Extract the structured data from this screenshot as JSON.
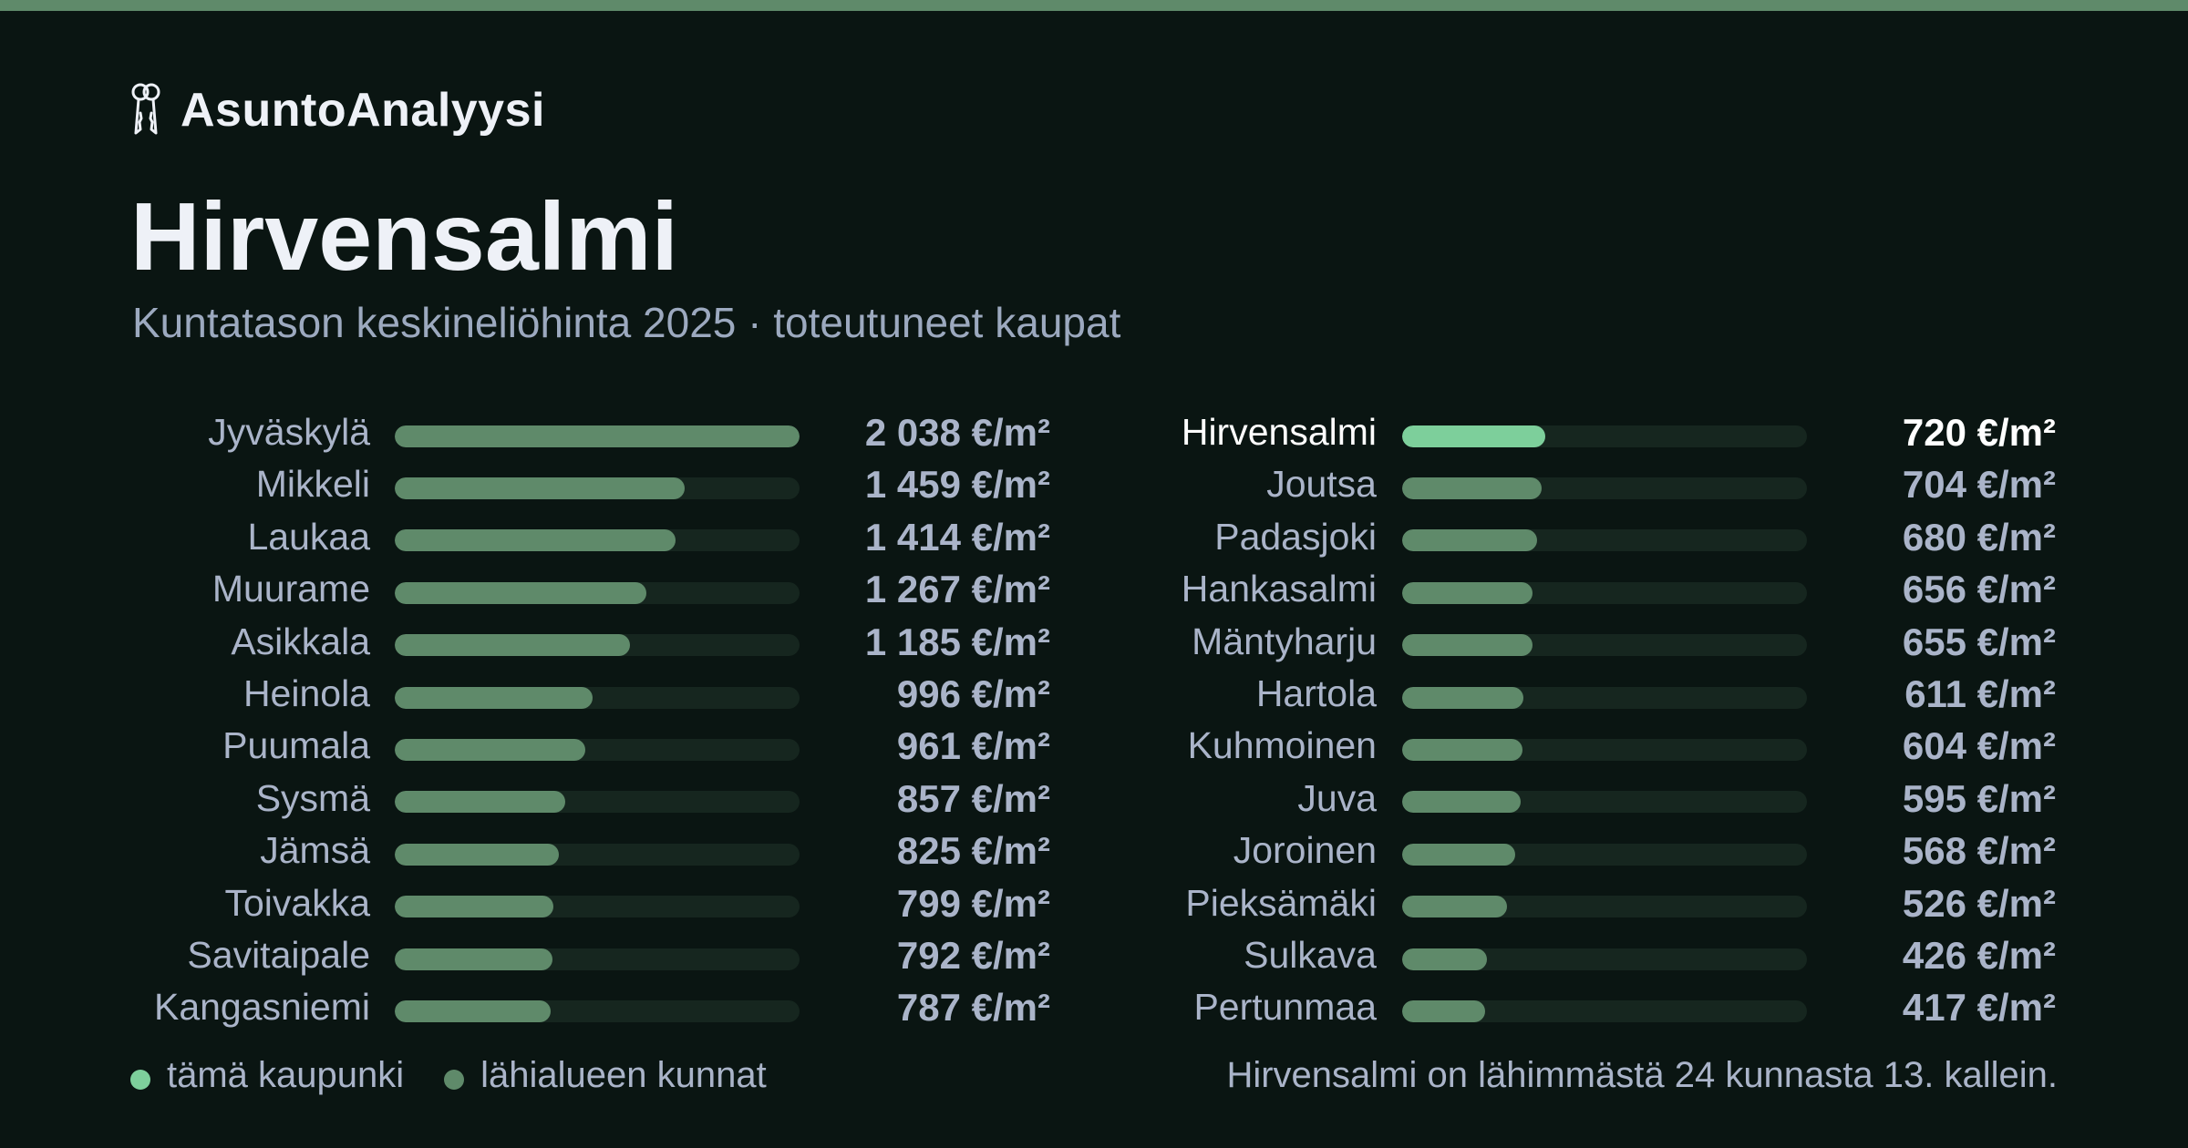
{
  "brand": {
    "name": "AsuntoAnalyysi",
    "icon": "keys-icon"
  },
  "header": {
    "title": "Hirvensalmi",
    "subtitle": "Kuntatason keskineliöhinta 2025 · toteutuneet kaupat"
  },
  "colors": {
    "background": "#0a1512",
    "accent": "#7dcf9b",
    "bar": "#5f8a6a",
    "track": "#16261f",
    "text_muted": "#aab4c9",
    "text_bright": "#ffffff"
  },
  "chart_data": {
    "type": "bar",
    "orientation": "horizontal",
    "unit": "€/m²",
    "xlim": [
      0,
      2038
    ],
    "highlight": "Hirvensalmi",
    "columns": [
      [
        {
          "name": "Jyväskylä",
          "value": 2038,
          "label": "2 038 €/m²"
        },
        {
          "name": "Mikkeli",
          "value": 1459,
          "label": "1 459 €/m²"
        },
        {
          "name": "Laukaa",
          "value": 1414,
          "label": "1 414 €/m²"
        },
        {
          "name": "Muurame",
          "value": 1267,
          "label": "1 267 €/m²"
        },
        {
          "name": "Asikkala",
          "value": 1185,
          "label": "1 185 €/m²"
        },
        {
          "name": "Heinola",
          "value": 996,
          "label": "996 €/m²"
        },
        {
          "name": "Puumala",
          "value": 961,
          "label": "961 €/m²"
        },
        {
          "name": "Sysmä",
          "value": 857,
          "label": "857 €/m²"
        },
        {
          "name": "Jämsä",
          "value": 825,
          "label": "825 €/m²"
        },
        {
          "name": "Toivakka",
          "value": 799,
          "label": "799 €/m²"
        },
        {
          "name": "Savitaipale",
          "value": 792,
          "label": "792 €/m²"
        },
        {
          "name": "Kangasniemi",
          "value": 787,
          "label": "787 €/m²"
        }
      ],
      [
        {
          "name": "Hirvensalmi",
          "value": 720,
          "label": "720 €/m²"
        },
        {
          "name": "Joutsa",
          "value": 704,
          "label": "704 €/m²"
        },
        {
          "name": "Padasjoki",
          "value": 680,
          "label": "680 €/m²"
        },
        {
          "name": "Hankasalmi",
          "value": 656,
          "label": "656 €/m²"
        },
        {
          "name": "Mäntyharju",
          "value": 655,
          "label": "655 €/m²"
        },
        {
          "name": "Hartola",
          "value": 611,
          "label": "611 €/m²"
        },
        {
          "name": "Kuhmoinen",
          "value": 604,
          "label": "604 €/m²"
        },
        {
          "name": "Juva",
          "value": 595,
          "label": "595 €/m²"
        },
        {
          "name": "Joroinen",
          "value": 568,
          "label": "568 €/m²"
        },
        {
          "name": "Pieksämäki",
          "value": 526,
          "label": "526 €/m²"
        },
        {
          "name": "Sulkava",
          "value": 426,
          "label": "426 €/m²"
        },
        {
          "name": "Pertunmaa",
          "value": 417,
          "label": "417 €/m²"
        }
      ]
    ]
  },
  "legend": {
    "this_city": "tämä kaupunki",
    "nearby": "lähialueen kunnat",
    "rank_note": "Hirvensalmi on lähimmästä 24 kunnasta 13. kallein."
  }
}
